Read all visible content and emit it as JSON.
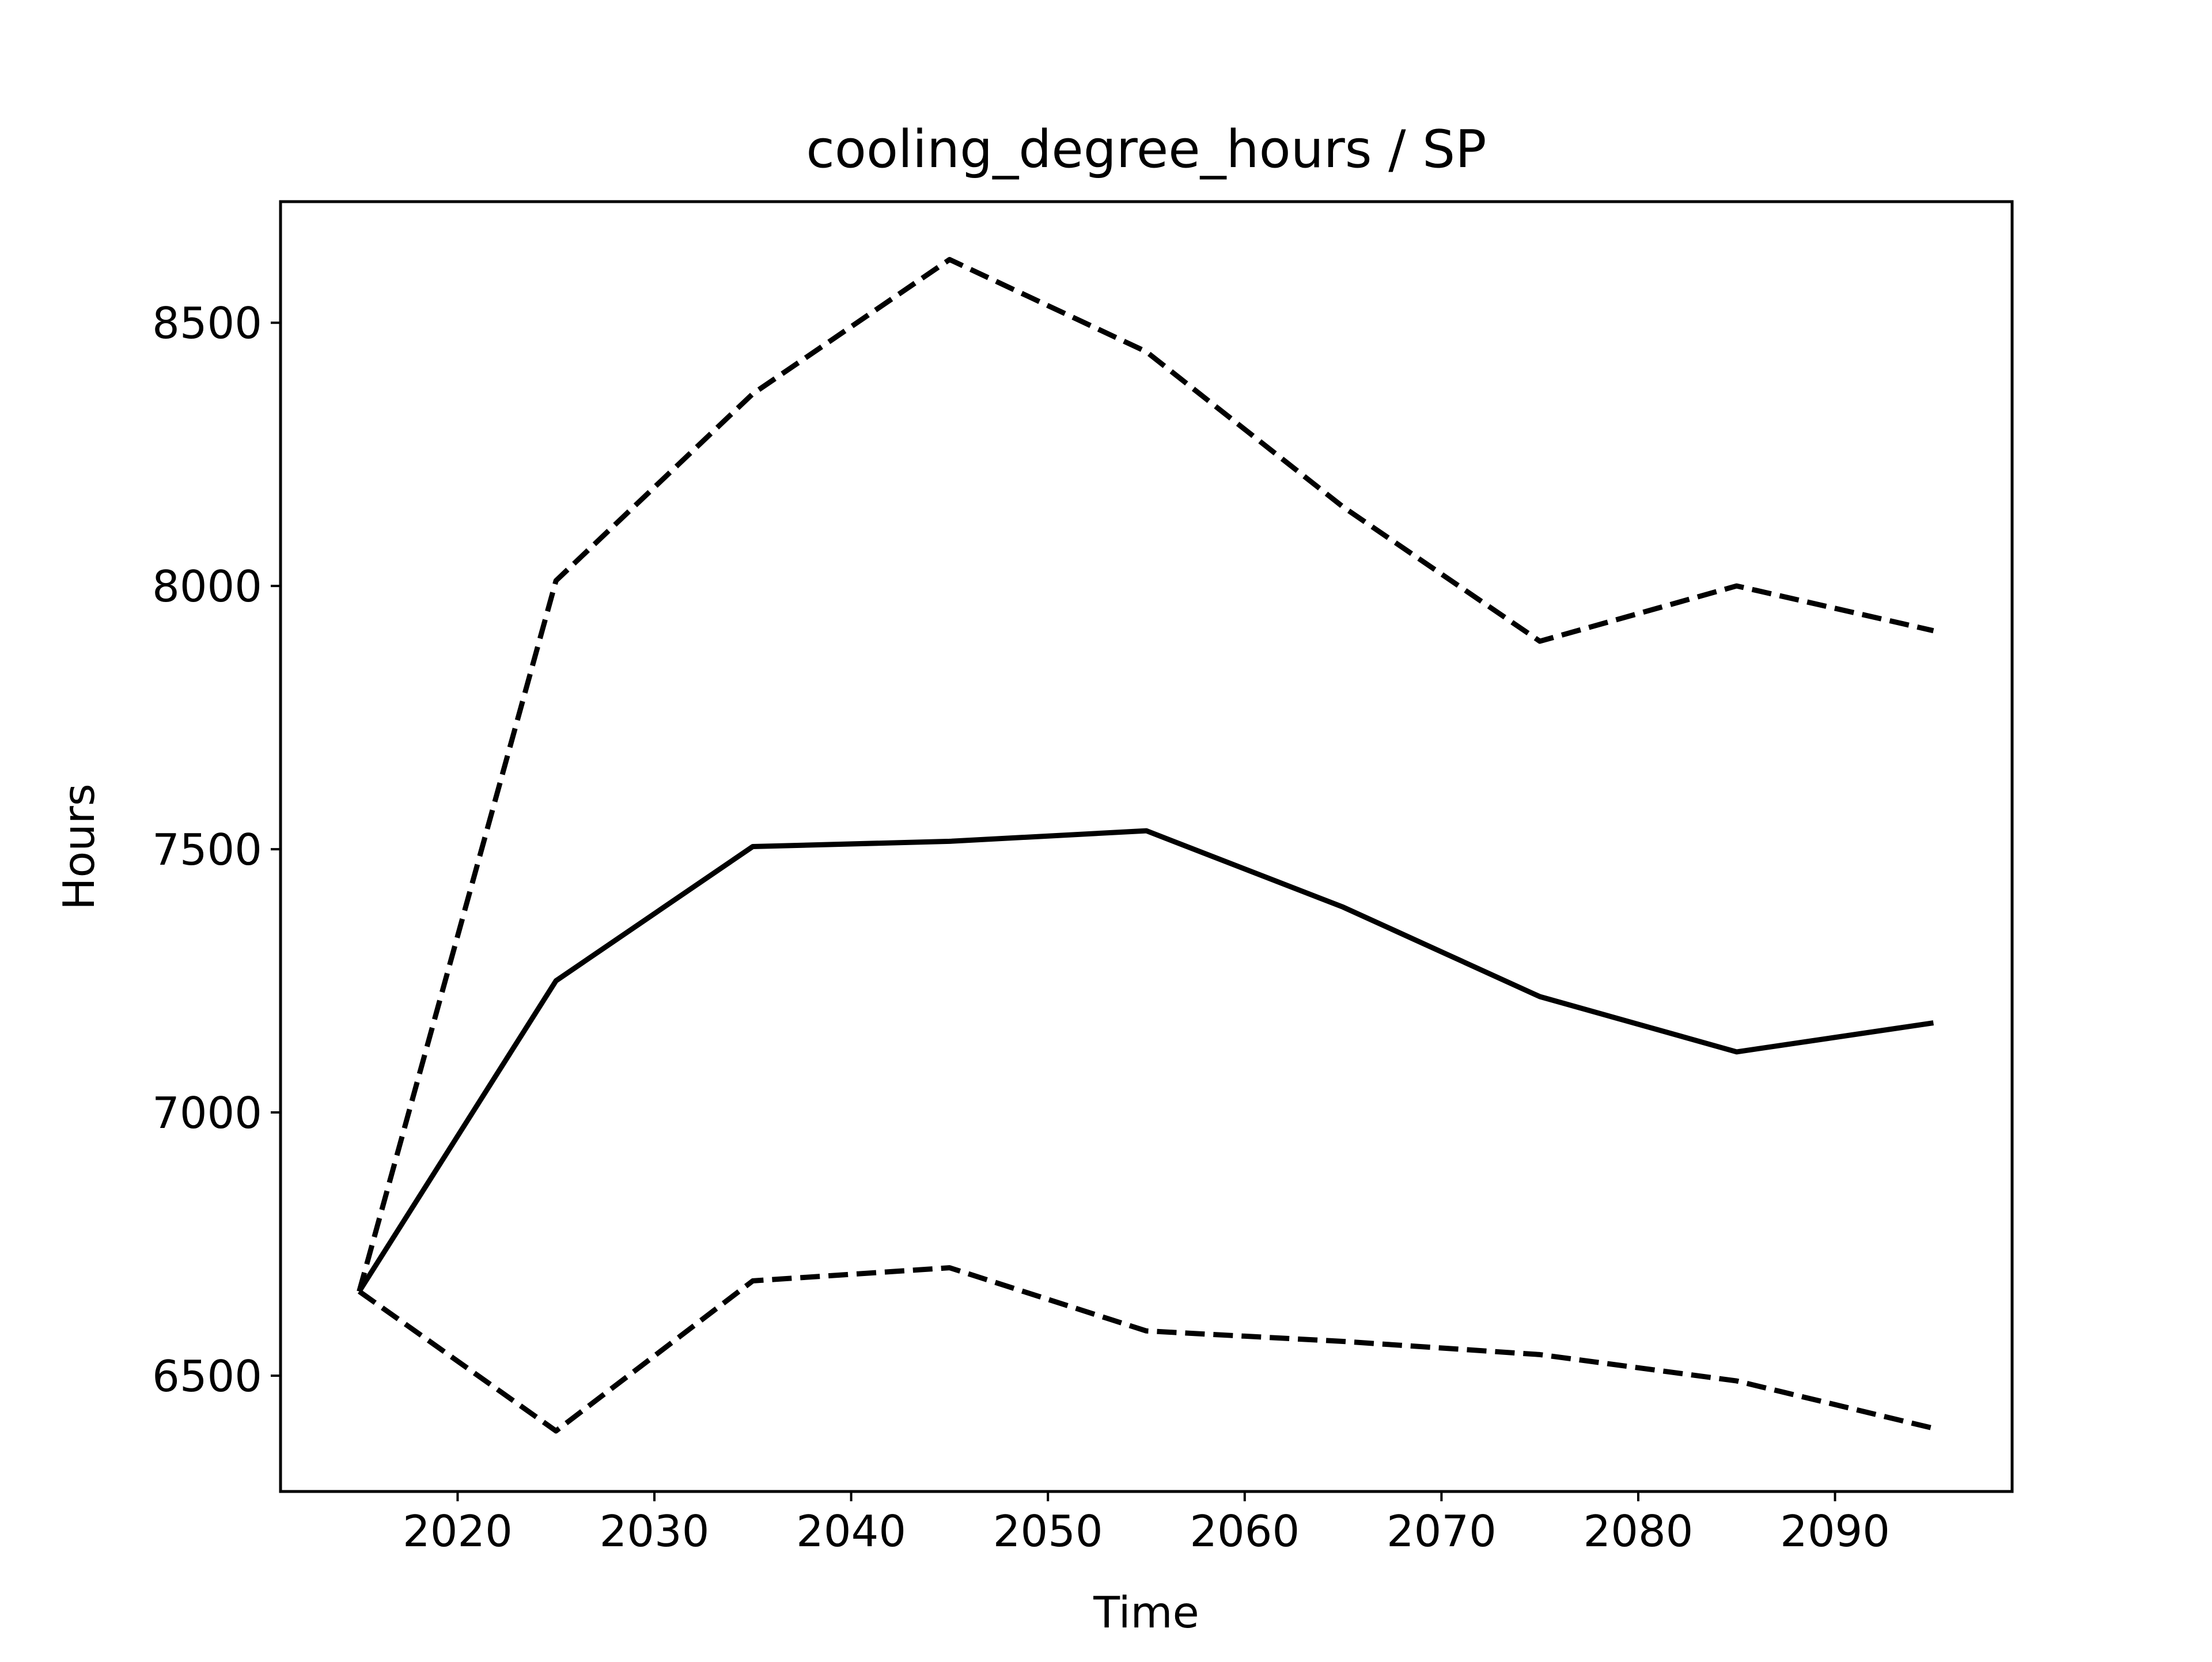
{
  "chart_data": {
    "type": "line",
    "title": "cooling_degree_hours / SP",
    "xlabel": "Time",
    "ylabel": "Hours",
    "xlim": [
      2011,
      2099
    ],
    "ylim": [
      6280,
      8730
    ],
    "x_ticks": [
      2020,
      2030,
      2040,
      2050,
      2060,
      2070,
      2080,
      2090
    ],
    "y_ticks": [
      6500,
      7000,
      7500,
      8000,
      8500
    ],
    "grid": false,
    "x": [
      2015,
      2025,
      2035,
      2045,
      2055,
      2065,
      2075,
      2085,
      2095
    ],
    "series": [
      {
        "style": "solid",
        "color": "#000000",
        "values": [
          6660,
          7250,
          7505,
          7515,
          7535,
          7390,
          7220,
          7115,
          7170
        ]
      },
      {
        "style": "dashed",
        "color": "#000000",
        "values": [
          6660,
          8010,
          8365,
          8620,
          8445,
          8150,
          7895,
          8000,
          7915
        ]
      },
      {
        "style": "dashed",
        "color": "#000000",
        "values": [
          6660,
          6395,
          6680,
          6705,
          6585,
          6565,
          6540,
          6490,
          6400
        ]
      }
    ]
  }
}
